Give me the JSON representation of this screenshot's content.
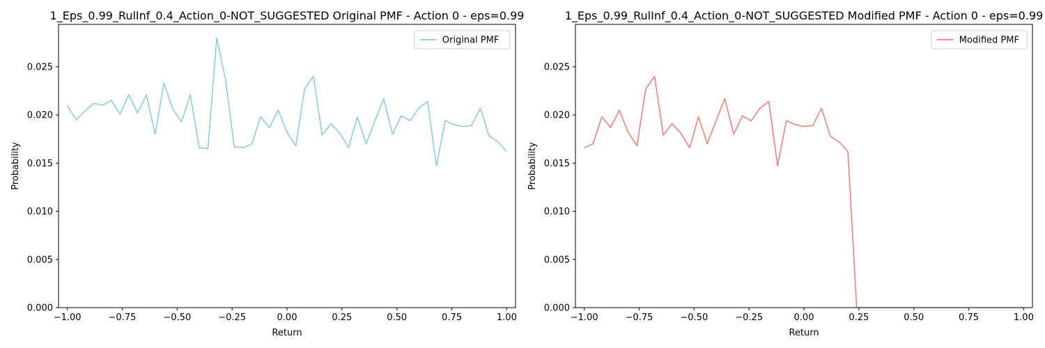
{
  "chart_data": [
    {
      "type": "line",
      "title": "1_Eps_0.99_RulInf_0.4_Action_0-NOT_SUGGESTED Original PMF - Action 0 - eps=0.99",
      "xlabel": "Return",
      "ylabel": "Probability",
      "xlim": [
        -1.04,
        1.04
      ],
      "ylim": [
        0.0,
        0.0294
      ],
      "xticks": [
        -1.0,
        -0.75,
        -0.5,
        -0.25,
        0.0,
        0.25,
        0.5,
        0.75,
        1.0
      ],
      "xtick_labels": [
        "−1.00",
        "−0.75",
        "−0.50",
        "−0.25",
        "0.00",
        "0.25",
        "0.50",
        "0.75",
        "1.00"
      ],
      "yticks": [
        0.0,
        0.005,
        0.01,
        0.015,
        0.02,
        0.025
      ],
      "ytick_labels": [
        "0.000",
        "0.005",
        "0.010",
        "0.015",
        "0.020",
        "0.025"
      ],
      "grid": false,
      "legend_position": "top-right",
      "series": [
        {
          "name": "Original PMF",
          "color": "#87ceeb",
          "x": [
            -1.0,
            -0.96,
            -0.92,
            -0.88,
            -0.84,
            -0.8,
            -0.76,
            -0.72,
            -0.68,
            -0.64,
            -0.6,
            -0.56,
            -0.52,
            -0.48,
            -0.44,
            -0.4,
            -0.36,
            -0.32,
            -0.28,
            -0.24,
            -0.2,
            -0.16,
            -0.12,
            -0.08,
            -0.04,
            0.0,
            0.04,
            0.08,
            0.12,
            0.16,
            0.2,
            0.24,
            0.28,
            0.32,
            0.36,
            0.4,
            0.44,
            0.48,
            0.52,
            0.56,
            0.6,
            0.64,
            0.68,
            0.72,
            0.76,
            0.8,
            0.84,
            0.88,
            0.92,
            0.96,
            1.0
          ],
          "values": [
            0.021,
            0.0195,
            0.0204,
            0.0212,
            0.021,
            0.0215,
            0.0201,
            0.0221,
            0.0202,
            0.0221,
            0.018,
            0.0233,
            0.0206,
            0.0193,
            0.0221,
            0.0166,
            0.0165,
            0.028,
            0.0237,
            0.0167,
            0.0166,
            0.017,
            0.0198,
            0.0187,
            0.0205,
            0.0182,
            0.0168,
            0.0227,
            0.024,
            0.0179,
            0.0191,
            0.0181,
            0.0166,
            0.0198,
            0.017,
            0.0194,
            0.0217,
            0.018,
            0.0199,
            0.0194,
            0.0207,
            0.0214,
            0.0147,
            0.0194,
            0.019,
            0.0188,
            0.0189,
            0.0207,
            0.0178,
            0.0172,
            0.0162
          ]
        }
      ]
    },
    {
      "type": "line",
      "title": "1_Eps_0.99_RulInf_0.4_Action_0-NOT_SUGGESTED Modified PMF - Action 0 - eps=0.99",
      "xlabel": "Return",
      "ylabel": "Probability",
      "xlim": [
        -1.04,
        1.04
      ],
      "ylim": [
        0.0,
        0.0294
      ],
      "xticks": [
        -1.0,
        -0.75,
        -0.5,
        -0.25,
        0.0,
        0.25,
        0.5,
        0.75,
        1.0
      ],
      "xtick_labels": [
        "−1.00",
        "−0.75",
        "−0.50",
        "−0.25",
        "0.00",
        "0.25",
        "0.50",
        "0.75",
        "1.00"
      ],
      "yticks": [
        0.0,
        0.005,
        0.01,
        0.015,
        0.02,
        0.025
      ],
      "ytick_labels": [
        "0.000",
        "0.005",
        "0.010",
        "0.015",
        "0.020",
        "0.025"
      ],
      "grid": false,
      "legend_position": "top-right",
      "series": [
        {
          "name": "Modified PMF",
          "color": "#fa8072",
          "x": [
            -1.0,
            -0.96,
            -0.92,
            -0.88,
            -0.84,
            -0.8,
            -0.76,
            -0.72,
            -0.68,
            -0.64,
            -0.6,
            -0.56,
            -0.52,
            -0.48,
            -0.44,
            -0.4,
            -0.36,
            -0.32,
            -0.28,
            -0.24,
            -0.2,
            -0.16,
            -0.12,
            -0.08,
            -0.04,
            0.0,
            0.04,
            0.08,
            0.12,
            0.16,
            0.2,
            0.24,
            0.28,
            0.32,
            0.36,
            0.4,
            0.44,
            0.48,
            0.52,
            0.56,
            0.6,
            0.64,
            0.68,
            0.72,
            0.76,
            0.8,
            0.84,
            0.88,
            0.92,
            0.96,
            1.0
          ],
          "values": [
            0.0166,
            0.017,
            0.0198,
            0.0187,
            0.0205,
            0.0182,
            0.0168,
            0.0227,
            0.024,
            0.0179,
            0.0191,
            0.0181,
            0.0166,
            0.0198,
            0.017,
            0.0194,
            0.0217,
            0.018,
            0.0199,
            0.0194,
            0.0207,
            0.0214,
            0.0147,
            0.0194,
            0.019,
            0.0188,
            0.0189,
            0.0207,
            0.0178,
            0.0172,
            0.0162,
            0.0,
            0.0,
            0.0,
            0.0,
            0.0,
            0.0,
            0.0,
            0.0,
            0.0,
            0.0,
            0.0,
            0.0,
            0.0,
            0.0,
            0.0,
            0.0,
            0.0,
            0.0,
            0.0,
            0.0
          ]
        }
      ]
    }
  ]
}
